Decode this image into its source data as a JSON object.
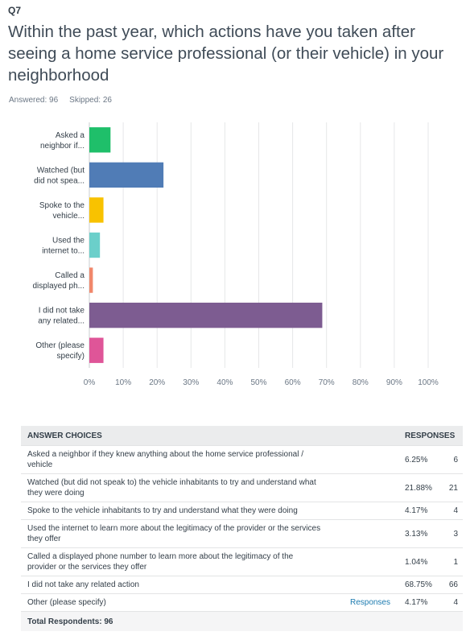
{
  "question": {
    "number": "Q7",
    "title": "Within the past year, which actions have you taken after seeing a home service professional (or their vehicle) in your neighborhood",
    "answered_label": "Answered: 96",
    "skipped_label": "Skipped: 26"
  },
  "chart_data": {
    "type": "bar",
    "orientation": "horizontal",
    "categories": [
      [
        "Asked a",
        "neighbor if..."
      ],
      [
        "Watched (but",
        "did not spea..."
      ],
      [
        "Spoke to the",
        "vehicle..."
      ],
      [
        "Used the",
        "internet to..."
      ],
      [
        "Called a",
        "displayed ph..."
      ],
      [
        "I did not take",
        "any related..."
      ],
      [
        "Other (please",
        "specify)"
      ]
    ],
    "values": [
      6.25,
      21.88,
      4.17,
      3.13,
      1.04,
      68.75,
      4.17
    ],
    "colors": [
      "#1fbf6a",
      "#507cb6",
      "#f8c200",
      "#6bcfca",
      "#f0876b",
      "#7d5c91",
      "#df5598"
    ],
    "xlim": [
      0,
      100
    ],
    "x_ticks": [
      "0%",
      "10%",
      "20%",
      "30%",
      "40%",
      "50%",
      "60%",
      "70%",
      "80%",
      "90%",
      "100%"
    ],
    "grid": true
  },
  "table": {
    "headers": [
      "ANSWER CHOICES",
      "RESPONSES"
    ],
    "rows": [
      {
        "choice": "Asked a neighbor if they knew anything about the home service professional / vehicle",
        "link": "",
        "percent": "6.25%",
        "count": "6"
      },
      {
        "choice": "Watched (but did not speak to) the vehicle inhabitants to try and understand what they were doing",
        "link": "",
        "percent": "21.88%",
        "count": "21"
      },
      {
        "choice": "Spoke to the vehicle inhabitants to try and understand what they were doing",
        "link": "",
        "percent": "4.17%",
        "count": "4"
      },
      {
        "choice": "Used the internet to learn more about the legitimacy of the provider or the services they offer",
        "link": "",
        "percent": "3.13%",
        "count": "3"
      },
      {
        "choice": "Called a displayed phone number to learn more about the legitimacy of the provider or the services they offer",
        "link": "",
        "percent": "1.04%",
        "count": "1"
      },
      {
        "choice": "I did not take any related action",
        "link": "",
        "percent": "68.75%",
        "count": "66"
      },
      {
        "choice": "Other (please specify)",
        "link": "Responses",
        "percent": "4.17%",
        "count": "4"
      }
    ],
    "total_label": "Total Respondents: 96"
  }
}
